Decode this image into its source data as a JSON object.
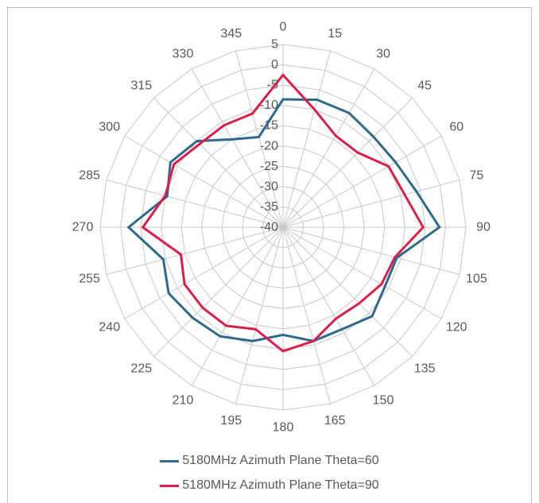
{
  "chart_data": {
    "type": "radar",
    "title": "",
    "angle_labels": [
      "0",
      "15",
      "30",
      "45",
      "60",
      "75",
      "90",
      "105",
      "120",
      "135",
      "150",
      "165",
      "180",
      "195",
      "210",
      "225",
      "240",
      "255",
      "270",
      "285",
      "300",
      "315",
      "330",
      "345"
    ],
    "radial_labels": [
      "5",
      "0",
      "-5",
      "-10",
      "-15",
      "-20",
      "-25",
      "-30",
      "-35",
      "-40"
    ],
    "rlim": [
      -40,
      5
    ],
    "grid": true,
    "legend_position": "bottom",
    "series": [
      {
        "name": "5180MHz Azimuth Plane Theta=60",
        "color": "#2e6a8e",
        "values": [
          -8.5,
          -7.5,
          -7.5,
          -8.5,
          -8,
          -6,
          -1.5,
          -11,
          -11,
          -9,
          -11,
          -11,
          -13.5,
          -11,
          -9,
          -8.5,
          -7.5,
          -9.5,
          -2,
          -10.5,
          -8,
          -10,
          -15,
          -17
        ]
      },
      {
        "name": "5180MHz Azimuth Plane Theta=90",
        "color": "#dc1f4a",
        "values": [
          -2.5,
          -10,
          -14,
          -14,
          -10,
          -9,
          -5.5,
          -11.5,
          -12,
          -13.5,
          -14,
          -11,
          -9.5,
          -14,
          -12,
          -12,
          -12,
          -14,
          -5.5,
          -10,
          -9,
          -11,
          -11,
          -11
        ]
      }
    ]
  }
}
